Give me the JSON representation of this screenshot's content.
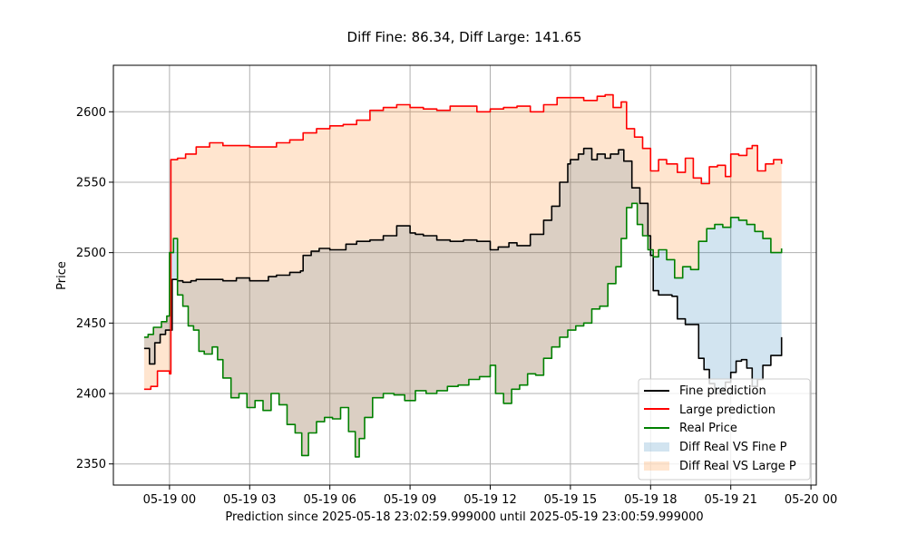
{
  "chart_data": {
    "type": "line",
    "title": "Diff Fine: 86.34, Diff Large: 141.65",
    "xlabel": "Prediction since 2025-05-18 23:02:59.999000 until 2025-05-19 23:00:59.999000",
    "ylabel": "Price",
    "x_unit": "hours since 2025-05-19 00:00",
    "xlim": [
      -2.1,
      24.2
    ],
    "ylim": [
      2335,
      2633
    ],
    "grid": true,
    "legend_position": "lower-right",
    "x_ticks": [
      {
        "value": 0,
        "label": "05-19 00"
      },
      {
        "value": 3,
        "label": "05-19 03"
      },
      {
        "value": 6,
        "label": "05-19 06"
      },
      {
        "value": 9,
        "label": "05-19 09"
      },
      {
        "value": 12,
        "label": "05-19 12"
      },
      {
        "value": 15,
        "label": "05-19 15"
      },
      {
        "value": 18,
        "label": "05-19 18"
      },
      {
        "value": 21,
        "label": "05-19 21"
      },
      {
        "value": 24,
        "label": "05-20 00"
      }
    ],
    "y_ticks": [
      2350,
      2400,
      2450,
      2500,
      2550,
      2600
    ],
    "series": [
      {
        "name": "Fine prediction",
        "color": "#000000",
        "x": [
          -0.95,
          -0.75,
          -0.55,
          -0.35,
          -0.15,
          0.0,
          0.1,
          0.3,
          0.5,
          0.8,
          1,
          1.5,
          2,
          2.5,
          3,
          3.3,
          3.7,
          4,
          4.5,
          4.9,
          5,
          5.3,
          5.6,
          6,
          6.3,
          6.6,
          7,
          7.5,
          8,
          8.5,
          9,
          9.2,
          9.5,
          10,
          10.5,
          11,
          11.5,
          12,
          12.3,
          12.7,
          13,
          13.5,
          14,
          14.3,
          14.6,
          14.9,
          15,
          15.3,
          15.5,
          15.8,
          16,
          16.3,
          16.5,
          16.8,
          17,
          17.3,
          17.6,
          17.9,
          18,
          18.1,
          18.3,
          18.8,
          19,
          19.3,
          19.5,
          19.8,
          20,
          20.2,
          20.4,
          20.6,
          20.8,
          21,
          21.2,
          21.4,
          21.6,
          21.8,
          22,
          22.2,
          22.5,
          22.9
        ],
        "values": [
          2432,
          2421,
          2436,
          2442,
          2445,
          2445,
          2481,
          2480,
          2479,
          2480,
          2481,
          2481,
          2480,
          2482,
          2480,
          2480,
          2483,
          2484,
          2486,
          2487,
          2498,
          2501,
          2503,
          2502,
          2502,
          2506,
          2508,
          2509,
          2512,
          2519,
          2514,
          2513,
          2512,
          2509,
          2508,
          2509,
          2508,
          2502,
          2504,
          2507,
          2505,
          2513,
          2523,
          2533,
          2550,
          2563,
          2566,
          2570,
          2574,
          2566,
          2570,
          2567,
          2570,
          2573,
          2565,
          2546,
          2535,
          2512,
          2498,
          2473,
          2470,
          2469,
          2453,
          2449,
          2449,
          2425,
          2417,
          2407,
          2400,
          2403,
          2408,
          2415,
          2423,
          2424,
          2418,
          2405,
          2410,
          2420,
          2427,
          2440
        ]
      },
      {
        "name": "Large prediction",
        "color": "#ff0000",
        "x": [
          -0.95,
          -0.7,
          -0.45,
          -0.2,
          0.0,
          0.05,
          0.3,
          0.6,
          1,
          1.5,
          2,
          2.5,
          3,
          3.5,
          4,
          4.5,
          5,
          5.5,
          6,
          6.5,
          7,
          7.5,
          8,
          8.5,
          9,
          9.5,
          10,
          10.5,
          11,
          11.5,
          12,
          12.5,
          13,
          13.5,
          14,
          14.5,
          15,
          15.5,
          16,
          16.3,
          16.6,
          16.9,
          17.1,
          17.4,
          17.7,
          18,
          18.3,
          18.6,
          19,
          19.3,
          19.6,
          19.9,
          20.2,
          20.5,
          20.8,
          21,
          21.3,
          21.6,
          21.8,
          22,
          22.3,
          22.6,
          22.9
        ],
        "values": [
          2403,
          2405,
          2416,
          2416,
          2414,
          2566,
          2567,
          2570,
          2575,
          2578,
          2576,
          2576,
          2575,
          2575,
          2578,
          2580,
          2585,
          2588,
          2590,
          2591,
          2594,
          2601,
          2603,
          2605,
          2603,
          2602,
          2601,
          2604,
          2604,
          2600,
          2602,
          2603,
          2604,
          2600,
          2605,
          2610,
          2610,
          2608,
          2611,
          2612,
          2603,
          2607,
          2588,
          2582,
          2574,
          2558,
          2566,
          2563,
          2557,
          2567,
          2553,
          2549,
          2561,
          2562,
          2554,
          2570,
          2569,
          2574,
          2576,
          2558,
          2563,
          2566,
          2563
        ]
      },
      {
        "name": "Real Price",
        "color": "#008000",
        "x": [
          -0.95,
          -0.8,
          -0.6,
          -0.3,
          -0.1,
          0.0,
          0.15,
          0.3,
          0.5,
          0.7,
          0.9,
          1.1,
          1.3,
          1.6,
          1.8,
          2,
          2.3,
          2.6,
          2.9,
          3.2,
          3.5,
          3.8,
          4.1,
          4.4,
          4.7,
          4.95,
          5.2,
          5.5,
          5.8,
          6.1,
          6.4,
          6.7,
          6.95,
          7.1,
          7.3,
          7.6,
          8,
          8.4,
          8.8,
          9.2,
          9.6,
          10,
          10.4,
          10.8,
          11.2,
          11.6,
          12,
          12.2,
          12.5,
          12.8,
          13.1,
          13.4,
          13.7,
          14,
          14.3,
          14.6,
          14.9,
          15.2,
          15.5,
          15.8,
          16.1,
          16.4,
          16.7,
          16.9,
          17.1,
          17.3,
          17.5,
          17.7,
          17.9,
          18.1,
          18.3,
          18.6,
          18.9,
          19.2,
          19.5,
          19.8,
          20.1,
          20.4,
          20.7,
          21,
          21.3,
          21.6,
          21.9,
          22.2,
          22.5,
          22.9
        ],
        "values": [
          2440,
          2442,
          2447,
          2451,
          2455,
          2500,
          2510,
          2470,
          2462,
          2448,
          2445,
          2430,
          2428,
          2433,
          2424,
          2411,
          2397,
          2400,
          2390,
          2395,
          2388,
          2400,
          2392,
          2378,
          2372,
          2356,
          2372,
          2380,
          2383,
          2382,
          2390,
          2373,
          2355,
          2368,
          2383,
          2397,
          2400,
          2399,
          2395,
          2402,
          2400,
          2402,
          2405,
          2406,
          2410,
          2412,
          2420,
          2400,
          2393,
          2403,
          2406,
          2414,
          2413,
          2425,
          2433,
          2440,
          2445,
          2448,
          2450,
          2460,
          2462,
          2478,
          2490,
          2510,
          2532,
          2535,
          2520,
          2512,
          2502,
          2497,
          2502,
          2495,
          2482,
          2490,
          2488,
          2508,
          2517,
          2520,
          2518,
          2525,
          2523,
          2520,
          2515,
          2510,
          2500,
          2503
        ]
      }
    ],
    "fills": [
      {
        "name": "Diff Real VS Fine P",
        "color": "#1f77b4",
        "alpha": 0.2
      },
      {
        "name": "Diff Real VS Large P",
        "color": "#ff7f0e",
        "alpha": 0.2
      }
    ]
  }
}
